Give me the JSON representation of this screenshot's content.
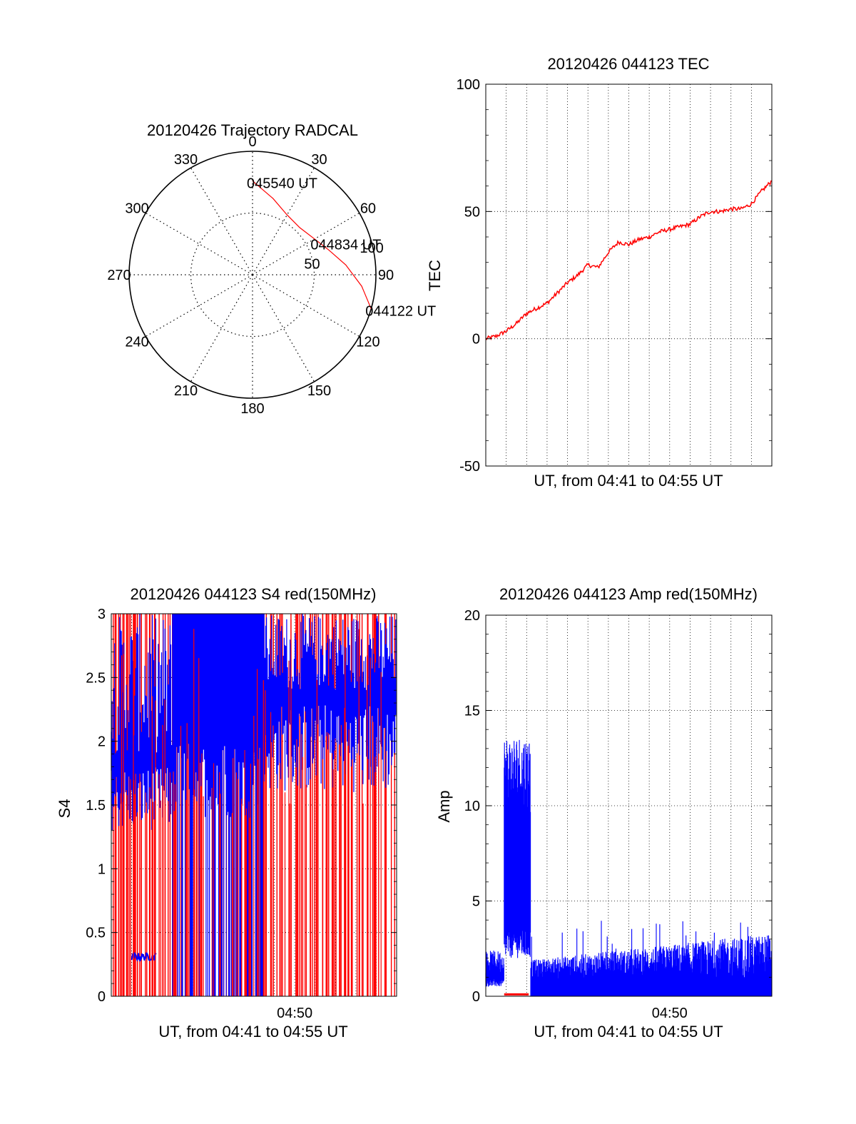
{
  "chart_data": [
    {
      "type": "polar",
      "title": "20120426 Trajectory RADCAL",
      "azimuth_labels": [
        "0",
        "30",
        "60",
        "90",
        "120",
        "150",
        "180",
        "210",
        "240",
        "270",
        "300",
        "330"
      ],
      "radial_labels": [
        "50",
        "100"
      ],
      "radial_max": 100,
      "grid": true,
      "series": [
        {
          "color": "#ff0000",
          "points": [
            {
              "az": 0,
              "r": 76
            },
            {
              "az": 15,
              "r": 64
            },
            {
              "az": 30,
              "r": 56
            },
            {
              "az": 45,
              "r": 54
            },
            {
              "az": 60,
              "r": 58
            },
            {
              "az": 72,
              "r": 65
            },
            {
              "az": 84,
              "r": 76
            },
            {
              "az": 96,
              "r": 89
            },
            {
              "az": 106,
              "r": 100
            }
          ]
        }
      ],
      "annotations": [
        {
          "text": "045540 UT",
          "az": 0,
          "r": 76
        },
        {
          "text": "044834 UT",
          "az": 63,
          "r": 58
        },
        {
          "text": "044122 UT",
          "az": 106,
          "r": 100
        }
      ]
    },
    {
      "type": "line",
      "title": "20120426 044123 TEC",
      "xlabel": "UT, from 04:41 to 04:55 UT",
      "ylabel": "TEC",
      "xlim": [
        0,
        14
      ],
      "ylim": [
        -50,
        100
      ],
      "yticks": [
        "-50",
        "0",
        "50",
        "100"
      ],
      "grid": true,
      "series": [
        {
          "color": "#ff0000",
          "x": [
            0,
            0.5,
            1,
            1.5,
            2,
            2.5,
            3,
            3.5,
            4,
            4.5,
            5,
            5.5,
            6,
            6.5,
            7,
            7.5,
            8,
            8.5,
            9,
            9.5,
            10,
            10.5,
            11,
            11.5,
            12,
            12.5,
            13,
            13.5,
            14
          ],
          "y": [
            0,
            1,
            3,
            6,
            10,
            12,
            14,
            18,
            22,
            25,
            29,
            28,
            34,
            38,
            37,
            39,
            40,
            42,
            43,
            44,
            45,
            48,
            50,
            50,
            51,
            51,
            53,
            58,
            62
          ]
        }
      ]
    },
    {
      "type": "line",
      "title": "20120426 044123 S4 red(150MHz)",
      "xlabel": "UT, from 04:41 to 04:55 UT",
      "ylabel": "S4",
      "xlim": [
        0,
        14
      ],
      "ylim": [
        0,
        3
      ],
      "xticks": [
        {
          "x": 9,
          "label": "04:50"
        }
      ],
      "yticks": [
        "0",
        "0.5",
        "1",
        "1.5",
        "2",
        "2.5",
        "3"
      ],
      "grid": true,
      "series": [
        {
          "color": "#ff0000",
          "style": "spikes",
          "density": 150,
          "min": 0,
          "max": 3
        },
        {
          "color": "#0000ff",
          "style": "spikes",
          "density": 100,
          "min": 1.2,
          "max": 3
        },
        {
          "color": "#0000ff",
          "style": "flat",
          "x_range": [
            1,
            2.2
          ],
          "y": 0.31
        }
      ]
    },
    {
      "type": "line",
      "title": "20120426 044123 Amp red(150MHz)",
      "xlabel": "UT, from 04:41 to 04:55 UT",
      "ylabel": "Amp",
      "xlim": [
        0,
        14
      ],
      "ylim": [
        0,
        20
      ],
      "xticks": [
        {
          "x": 9,
          "label": "04:50"
        }
      ],
      "yticks": [
        "0",
        "5",
        "10",
        "15",
        "20"
      ],
      "grid": true,
      "series": [
        {
          "color": "#0000ff",
          "style": "noise",
          "segments": [
            {
              "x_range": [
                0,
                0.9
              ],
              "base": 1.2,
              "peak": 2.4
            },
            {
              "x_range": [
                0.9,
                2.2
              ],
              "base": 2.5,
              "peak": 13.8
            },
            {
              "x_range": [
                2.2,
                14
              ],
              "base": 0.9,
              "peak": 4.0
            }
          ]
        },
        {
          "color": "#ff0000",
          "style": "flat",
          "x_range": [
            0.9,
            2.1
          ],
          "y": 0.1
        }
      ]
    }
  ]
}
